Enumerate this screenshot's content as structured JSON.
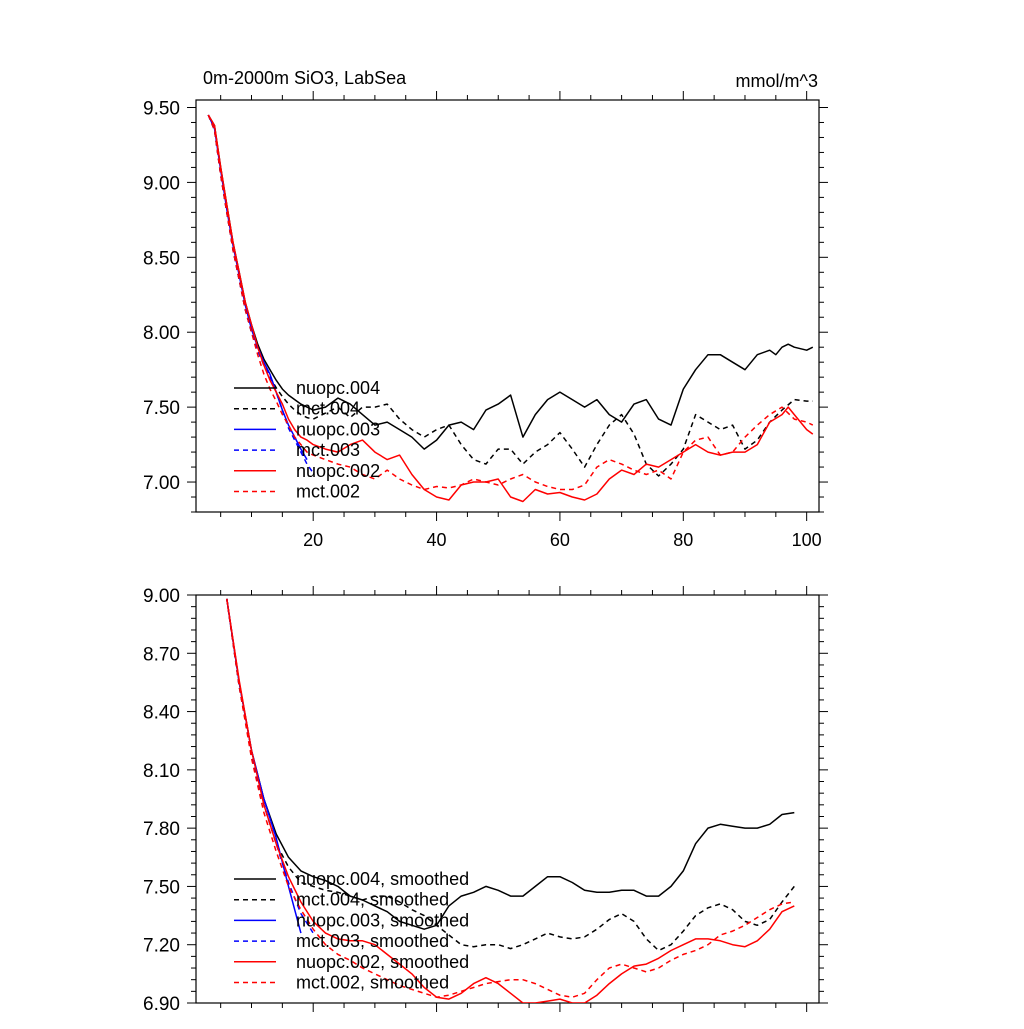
{
  "chart_data": [
    {
      "type": "line",
      "title": "0m-2000m SiO3, LabSea",
      "units": "mmol/m^3",
      "xlim": [
        1,
        102
      ],
      "ylim": [
        6.8,
        9.55
      ],
      "xticks": [
        20,
        40,
        60,
        80,
        100
      ],
      "xtick_labels": [
        "20",
        "40",
        "60",
        "80",
        "100"
      ],
      "yticks": [
        7.0,
        7.5,
        8.0,
        8.5,
        9.0,
        9.5
      ],
      "ytick_labels": [
        "7.00",
        "7.50",
        "8.00",
        "8.50",
        "9.00",
        "9.50"
      ],
      "legend_position": "lower-left",
      "series": [
        {
          "name": "nuopc.004",
          "color": "#000000",
          "dash": "solid",
          "x": [
            3,
            4,
            5,
            6,
            7,
            8,
            9,
            10,
            11,
            12,
            13,
            14,
            15,
            16,
            17,
            18,
            19,
            20,
            22,
            24,
            26,
            28,
            30,
            32,
            34,
            36,
            38,
            40,
            42,
            44,
            46,
            48,
            50,
            52,
            54,
            56,
            58,
            60,
            62,
            64,
            66,
            68,
            70,
            72,
            74,
            76,
            78,
            80,
            82,
            84,
            86,
            88,
            90,
            92,
            94,
            95,
            96,
            97,
            98,
            100,
            101
          ],
          "y": [
            9.45,
            9.38,
            9.1,
            8.85,
            8.6,
            8.4,
            8.2,
            8.05,
            7.92,
            7.82,
            7.75,
            7.68,
            7.62,
            7.58,
            7.55,
            7.52,
            7.5,
            7.48,
            7.5,
            7.56,
            7.52,
            7.45,
            7.38,
            7.4,
            7.35,
            7.3,
            7.22,
            7.28,
            7.38,
            7.4,
            7.35,
            7.48,
            7.52,
            7.58,
            7.3,
            7.45,
            7.55,
            7.6,
            7.55,
            7.5,
            7.55,
            7.45,
            7.4,
            7.52,
            7.55,
            7.42,
            7.38,
            7.62,
            7.75,
            7.85,
            7.85,
            7.8,
            7.75,
            7.85,
            7.88,
            7.85,
            7.9,
            7.92,
            7.9,
            7.88,
            7.9
          ]
        },
        {
          "name": "mct.004",
          "color": "#000000",
          "dash": "dashed",
          "x": [
            3,
            4,
            5,
            6,
            7,
            8,
            9,
            10,
            11,
            12,
            13,
            14,
            15,
            16,
            17,
            18,
            19,
            20,
            22,
            24,
            26,
            28,
            30,
            32,
            34,
            36,
            38,
            40,
            42,
            44,
            46,
            48,
            50,
            52,
            54,
            56,
            58,
            60,
            62,
            64,
            66,
            68,
            70,
            72,
            74,
            76,
            78,
            80,
            82,
            84,
            86,
            88,
            90,
            92,
            94,
            96,
            98,
            100,
            101
          ],
          "y": [
            9.45,
            9.35,
            9.05,
            8.8,
            8.55,
            8.35,
            8.15,
            8.0,
            7.88,
            7.78,
            7.7,
            7.63,
            7.57,
            7.52,
            7.48,
            7.45,
            7.43,
            7.42,
            7.46,
            7.5,
            7.43,
            7.5,
            7.5,
            7.52,
            7.42,
            7.35,
            7.3,
            7.35,
            7.38,
            7.25,
            7.15,
            7.12,
            7.22,
            7.22,
            7.12,
            7.2,
            7.25,
            7.33,
            7.22,
            7.1,
            7.25,
            7.38,
            7.45,
            7.32,
            7.12,
            7.04,
            7.12,
            7.22,
            7.45,
            7.4,
            7.35,
            7.38,
            7.22,
            7.28,
            7.4,
            7.48,
            7.55,
            7.54,
            7.54
          ]
        },
        {
          "name": "nuopc.003",
          "color": "#0000ff",
          "dash": "solid",
          "x": [
            3,
            4,
            5,
            6,
            7,
            8,
            9,
            10,
            11,
            12,
            13,
            14,
            15,
            16,
            17,
            18,
            19
          ],
          "y": [
            9.45,
            9.36,
            9.08,
            8.82,
            8.58,
            8.38,
            8.18,
            8.02,
            7.9,
            7.8,
            7.72,
            7.6,
            7.48,
            7.38,
            7.3,
            7.22,
            7.15
          ]
        },
        {
          "name": "mct.003",
          "color": "#0000ff",
          "dash": "dashed",
          "x": [
            3,
            4,
            5,
            6,
            7,
            8,
            9,
            10,
            11,
            12,
            13,
            14,
            15,
            16,
            17,
            18,
            19,
            20
          ],
          "y": [
            9.45,
            9.35,
            9.05,
            8.8,
            8.55,
            8.35,
            8.15,
            8.0,
            7.88,
            7.78,
            7.7,
            7.6,
            7.48,
            7.36,
            7.28,
            7.2,
            7.12,
            7.06
          ]
        },
        {
          "name": "nuopc.002",
          "color": "#ff0000",
          "dash": "solid",
          "x": [
            3,
            4,
            5,
            6,
            7,
            8,
            9,
            10,
            11,
            12,
            13,
            14,
            15,
            16,
            17,
            18,
            19,
            20,
            22,
            24,
            26,
            28,
            30,
            32,
            34,
            36,
            38,
            40,
            42,
            44,
            46,
            48,
            50,
            52,
            54,
            56,
            58,
            60,
            62,
            64,
            66,
            68,
            70,
            72,
            74,
            76,
            78,
            80,
            82,
            84,
            86,
            88,
            90,
            92,
            94,
            96,
            97,
            98,
            100,
            101
          ],
          "y": [
            9.45,
            9.38,
            9.1,
            8.85,
            8.6,
            8.4,
            8.2,
            8.05,
            7.9,
            7.78,
            7.68,
            7.6,
            7.52,
            7.42,
            7.35,
            7.3,
            7.28,
            7.25,
            7.22,
            7.2,
            7.25,
            7.28,
            7.2,
            7.15,
            7.18,
            7.05,
            6.95,
            6.9,
            6.88,
            6.98,
            7.0,
            7.0,
            7.02,
            6.9,
            6.87,
            6.95,
            6.92,
            6.93,
            6.9,
            6.88,
            6.92,
            7.02,
            7.08,
            7.05,
            7.12,
            7.1,
            7.15,
            7.2,
            7.25,
            7.2,
            7.18,
            7.2,
            7.2,
            7.25,
            7.4,
            7.45,
            7.5,
            7.45,
            7.35,
            7.32
          ]
        },
        {
          "name": "mct.002",
          "color": "#ff0000",
          "dash": "dashed",
          "x": [
            3,
            4,
            5,
            6,
            7,
            8,
            9,
            10,
            11,
            12,
            13,
            14,
            15,
            16,
            17,
            18,
            19,
            20,
            22,
            24,
            26,
            28,
            30,
            32,
            34,
            36,
            38,
            40,
            42,
            44,
            46,
            48,
            50,
            52,
            54,
            56,
            58,
            60,
            62,
            64,
            66,
            68,
            70,
            72,
            74,
            76,
            78,
            80,
            82,
            84,
            86,
            88,
            90,
            92,
            94,
            96,
            98,
            100,
            101
          ],
          "y": [
            9.45,
            9.35,
            9.05,
            8.8,
            8.55,
            8.35,
            8.15,
            8.0,
            7.85,
            7.72,
            7.62,
            7.54,
            7.45,
            7.38,
            7.3,
            7.25,
            7.2,
            7.18,
            7.15,
            7.12,
            7.1,
            7.05,
            7.02,
            7.08,
            7.02,
            6.98,
            6.95,
            6.97,
            6.96,
            6.98,
            7.02,
            7.0,
            6.98,
            7.02,
            7.05,
            7.0,
            6.97,
            6.95,
            6.95,
            6.98,
            7.1,
            7.15,
            7.12,
            7.08,
            7.05,
            7.08,
            7.02,
            7.2,
            7.28,
            7.3,
            7.18,
            7.2,
            7.3,
            7.38,
            7.45,
            7.5,
            7.42,
            7.4,
            7.38
          ]
        }
      ]
    },
    {
      "type": "line",
      "title": "",
      "xlim": [
        1,
        102
      ],
      "ylim": [
        6.9,
        9.0
      ],
      "xticks": [
        20,
        40,
        60,
        80,
        100
      ],
      "xtick_labels": [
        "",
        "",
        "",
        "",
        ""
      ],
      "yticks": [
        6.9,
        7.2,
        7.5,
        7.8,
        8.1,
        8.4,
        8.7,
        9.0
      ],
      "ytick_labels": [
        "6.90",
        "7.20",
        "7.50",
        "7.80",
        "8.10",
        "8.40",
        "8.70",
        "9.00"
      ],
      "legend_position": "lower-left",
      "series": [
        {
          "name": "nuopc.004, smoothed",
          "color": "#000000",
          "dash": "solid",
          "x": [
            6,
            8,
            10,
            12,
            14,
            16,
            18,
            20,
            22,
            24,
            26,
            28,
            30,
            32,
            34,
            36,
            38,
            40,
            42,
            44,
            46,
            48,
            50,
            52,
            54,
            56,
            58,
            60,
            62,
            64,
            66,
            68,
            70,
            72,
            74,
            76,
            78,
            80,
            82,
            84,
            86,
            88,
            90,
            92,
            94,
            96,
            98
          ],
          "y": [
            8.98,
            8.55,
            8.2,
            7.95,
            7.77,
            7.65,
            7.58,
            7.55,
            7.53,
            7.5,
            7.45,
            7.43,
            7.4,
            7.37,
            7.32,
            7.3,
            7.28,
            7.3,
            7.4,
            7.45,
            7.47,
            7.5,
            7.48,
            7.45,
            7.45,
            7.5,
            7.55,
            7.55,
            7.52,
            7.48,
            7.47,
            7.47,
            7.48,
            7.48,
            7.45,
            7.45,
            7.5,
            7.58,
            7.72,
            7.8,
            7.82,
            7.81,
            7.8,
            7.8,
            7.82,
            7.87,
            7.88
          ]
        },
        {
          "name": "mct.004, smoothed",
          "color": "#000000",
          "dash": "dashed",
          "x": [
            6,
            8,
            10,
            12,
            14,
            16,
            18,
            20,
            22,
            24,
            26,
            28,
            30,
            32,
            34,
            36,
            38,
            40,
            42,
            44,
            46,
            48,
            50,
            52,
            54,
            56,
            58,
            60,
            62,
            64,
            66,
            68,
            70,
            72,
            74,
            76,
            78,
            80,
            82,
            84,
            86,
            88,
            90,
            92,
            94,
            96,
            98
          ],
          "y": [
            8.98,
            8.53,
            8.18,
            7.92,
            7.72,
            7.6,
            7.52,
            7.5,
            7.48,
            7.47,
            7.45,
            7.43,
            7.45,
            7.45,
            7.42,
            7.38,
            7.35,
            7.3,
            7.25,
            7.2,
            7.19,
            7.2,
            7.2,
            7.18,
            7.2,
            7.23,
            7.26,
            7.24,
            7.23,
            7.24,
            7.28,
            7.33,
            7.36,
            7.32,
            7.23,
            7.17,
            7.2,
            7.27,
            7.35,
            7.39,
            7.41,
            7.38,
            7.32,
            7.3,
            7.33,
            7.42,
            7.5
          ]
        },
        {
          "name": "nuopc.003, smoothed",
          "color": "#0000ff",
          "dash": "solid",
          "x": [
            6,
            8,
            10,
            12,
            14,
            16,
            18
          ],
          "y": [
            8.98,
            8.55,
            8.2,
            7.95,
            7.75,
            7.5,
            7.26
          ]
        },
        {
          "name": "mct.003, smoothed",
          "color": "#0000ff",
          "dash": "dashed",
          "x": [
            6,
            8,
            10,
            12,
            14,
            16,
            18,
            20
          ],
          "y": [
            8.98,
            8.53,
            8.18,
            7.92,
            7.72,
            7.52,
            7.36,
            7.26
          ]
        },
        {
          "name": "nuopc.002, smoothed",
          "color": "#ff0000",
          "dash": "solid",
          "x": [
            6,
            8,
            10,
            12,
            14,
            16,
            18,
            20,
            22,
            24,
            26,
            28,
            30,
            32,
            34,
            36,
            38,
            40,
            42,
            44,
            46,
            48,
            50,
            52,
            54,
            56,
            58,
            60,
            62,
            64,
            66,
            68,
            70,
            72,
            74,
            76,
            78,
            80,
            82,
            84,
            86,
            88,
            90,
            92,
            94,
            96,
            98
          ],
          "y": [
            8.98,
            8.56,
            8.2,
            7.92,
            7.72,
            7.55,
            7.42,
            7.32,
            7.26,
            7.23,
            7.22,
            7.22,
            7.2,
            7.15,
            7.1,
            7.05,
            6.98,
            6.93,
            6.92,
            6.95,
            7.0,
            7.03,
            7.0,
            6.95,
            6.9,
            6.9,
            6.91,
            6.92,
            6.9,
            6.9,
            6.94,
            7.0,
            7.05,
            7.09,
            7.1,
            7.13,
            7.17,
            7.2,
            7.23,
            7.23,
            7.22,
            7.2,
            7.19,
            7.22,
            7.28,
            7.37,
            7.4
          ]
        },
        {
          "name": "mct.002, smoothed",
          "color": "#ff0000",
          "dash": "dashed",
          "x": [
            6,
            8,
            10,
            12,
            14,
            16,
            18,
            20,
            22,
            24,
            26,
            28,
            30,
            32,
            34,
            36,
            38,
            40,
            42,
            44,
            46,
            48,
            50,
            52,
            54,
            56,
            58,
            60,
            62,
            64,
            66,
            68,
            70,
            72,
            74,
            76,
            78,
            80,
            82,
            84,
            86,
            88,
            90,
            92,
            94,
            96,
            98
          ],
          "y": [
            8.98,
            8.53,
            8.16,
            7.88,
            7.68,
            7.5,
            7.38,
            7.28,
            7.2,
            7.15,
            7.12,
            7.08,
            7.05,
            7.02,
            6.99,
            6.97,
            6.95,
            6.93,
            6.94,
            6.96,
            6.98,
            7.0,
            7.01,
            7.02,
            7.02,
            7.0,
            6.97,
            6.94,
            6.93,
            6.95,
            7.02,
            7.08,
            7.1,
            7.08,
            7.06,
            7.08,
            7.12,
            7.15,
            7.17,
            7.2,
            7.25,
            7.27,
            7.3,
            7.34,
            7.38,
            7.41,
            7.42
          ]
        }
      ]
    }
  ]
}
